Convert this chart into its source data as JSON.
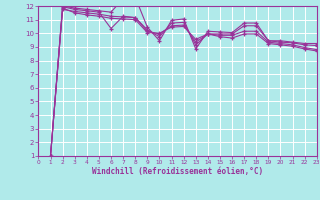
{
  "xlabel": "Windchill (Refroidissement éolien,°C)",
  "background_color": "#b0eaea",
  "grid_color": "#ffffff",
  "line_color": "#993399",
  "x_min": 0,
  "x_max": 23,
  "y_min": 1,
  "y_max": 12,
  "series": [
    [
      0,
      1,
      12,
      11.85,
      11.75,
      11.65,
      11.55,
      12.55,
      12.65,
      10.45,
      9.45,
      10.95,
      11.05,
      8.85,
      10.15,
      10.1,
      10.05,
      10.75,
      10.75,
      9.45,
      9.45,
      9.35,
      9.25,
      9.25
    ],
    [
      0,
      1,
      11.95,
      11.75,
      11.65,
      11.55,
      10.35,
      11.25,
      11.15,
      10.25,
      9.75,
      10.75,
      10.8,
      9.15,
      9.95,
      9.95,
      9.95,
      10.55,
      10.55,
      9.45,
      9.35,
      9.3,
      9.15,
      9.1
    ],
    [
      0,
      1,
      11.75,
      11.6,
      11.5,
      11.4,
      11.25,
      11.2,
      11.15,
      10.15,
      9.95,
      10.55,
      10.6,
      9.35,
      9.95,
      9.85,
      9.85,
      10.15,
      10.15,
      9.35,
      9.25,
      9.15,
      8.95,
      8.8
    ],
    [
      0,
      1,
      11.85,
      11.5,
      11.35,
      11.25,
      11.1,
      11.05,
      11.0,
      10.05,
      10.0,
      10.45,
      10.5,
      9.55,
      9.95,
      9.75,
      9.65,
      9.95,
      9.95,
      9.25,
      9.15,
      9.05,
      8.85,
      8.7
    ]
  ],
  "x_ticks": [
    0,
    1,
    2,
    3,
    4,
    5,
    6,
    7,
    8,
    9,
    10,
    11,
    12,
    13,
    14,
    15,
    16,
    17,
    18,
    19,
    20,
    21,
    22,
    23
  ],
  "y_ticks": [
    1,
    2,
    3,
    4,
    5,
    6,
    7,
    8,
    9,
    10,
    11,
    12
  ]
}
